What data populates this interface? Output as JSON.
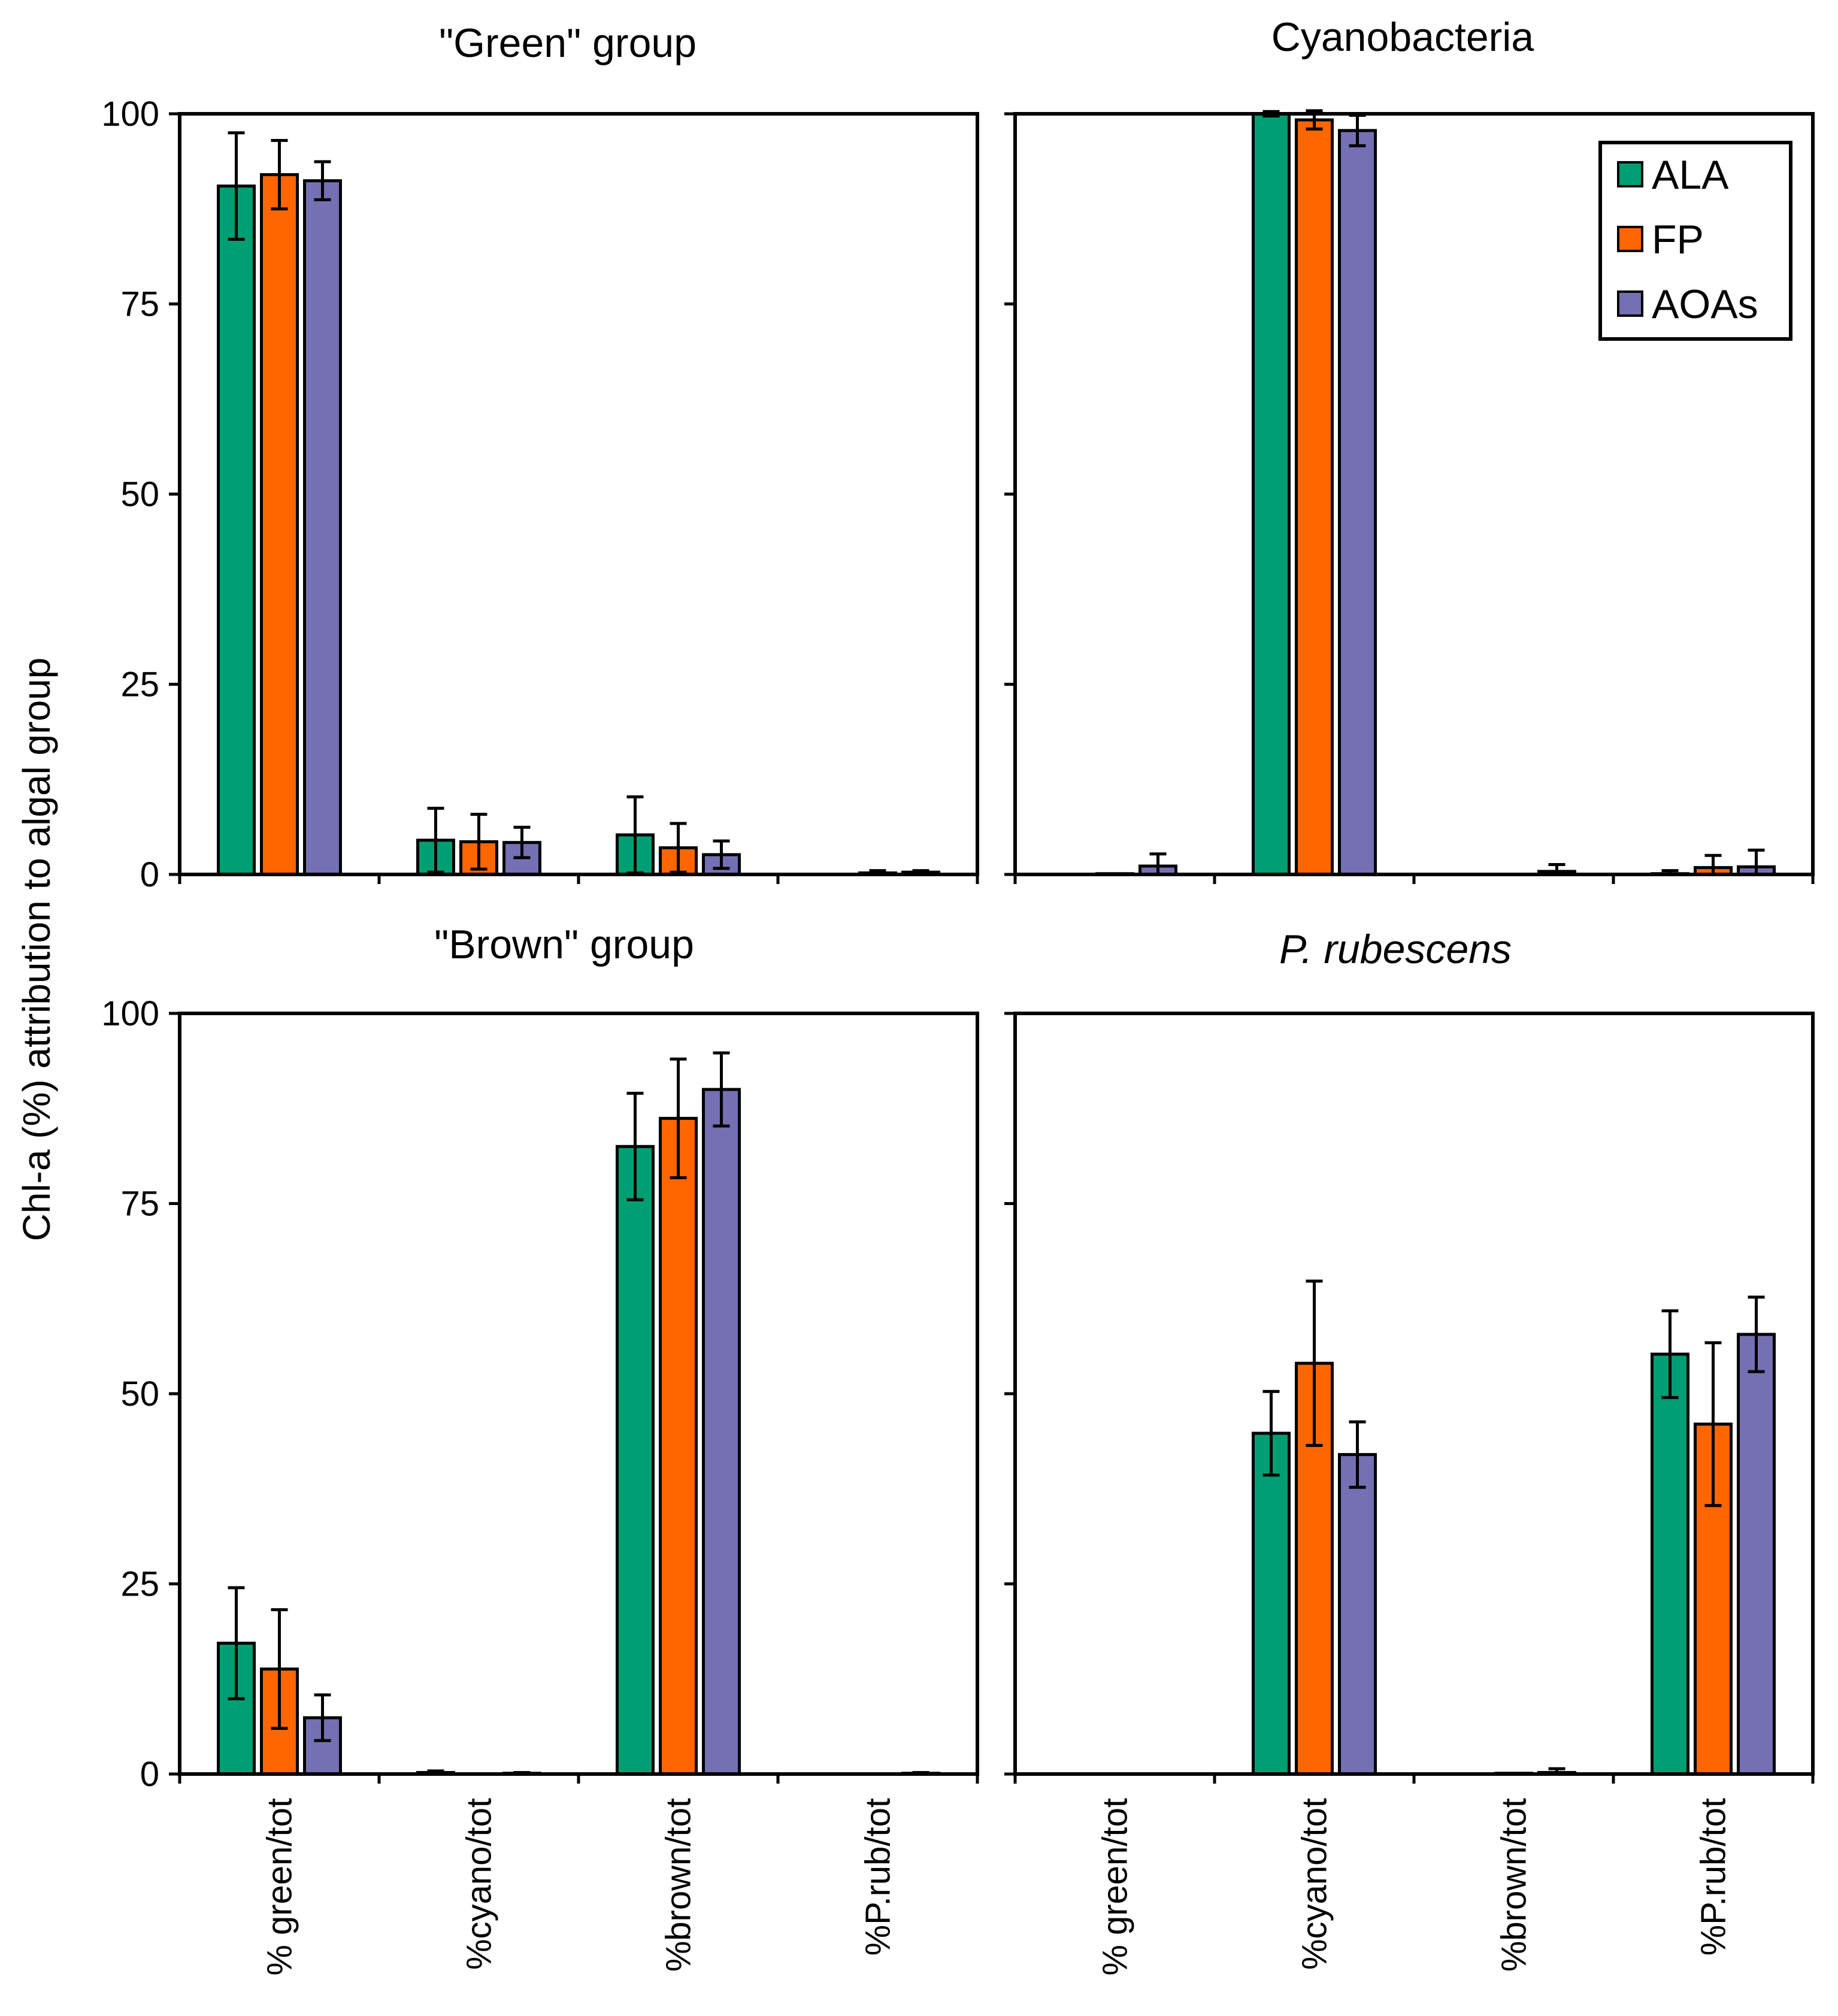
{
  "chart_data": {
    "type": "bar",
    "ylabel": "Chl-a (%) attribution to algal group",
    "categories": [
      "% green/tot",
      "%cyano/tot",
      "%brown/tot",
      "%P.rub/tot"
    ],
    "ylim": [
      0,
      100
    ],
    "yticks": [
      "0",
      "25",
      "50",
      "75",
      "100"
    ],
    "series_names": [
      "ALA",
      "FP",
      "AOAs"
    ],
    "colors": {
      "ALA": "#009E73",
      "FP": "#FF6600",
      "AOAs": "#7570B3"
    },
    "legend": {
      "placement": "top-right",
      "entries": [
        "ALA",
        "FP",
        "AOAs"
      ]
    },
    "panels": [
      {
        "title": "\"Green\" group",
        "italic": false,
        "series": [
          {
            "name": "ALA",
            "values": [
              90.5,
              4.5,
              5.2,
              0
            ],
            "errors": [
              7,
              4.2,
              5,
              0
            ]
          },
          {
            "name": "FP",
            "values": [
              92,
              4.3,
              3.5,
              0.2
            ],
            "errors": [
              4.5,
              3.6,
              3.2,
              0.3
            ]
          },
          {
            "name": "AOAs",
            "values": [
              91.2,
              4.2,
              2.6,
              0.3
            ],
            "errors": [
              2.5,
              2,
              1.8,
              0.2
            ]
          }
        ]
      },
      {
        "title": "Cyanobacteria",
        "italic": false,
        "series": [
          {
            "name": "ALA",
            "values": [
              0,
              100,
              0,
              0.1
            ],
            "errors": [
              0,
              0.3,
              0,
              0.4
            ]
          },
          {
            "name": "FP",
            "values": [
              0.1,
              99.2,
              0,
              0.9
            ],
            "errors": [
              0,
              1.2,
              0,
              1.6
            ]
          },
          {
            "name": "AOAs",
            "values": [
              1.1,
              97.8,
              0.4,
              1
            ],
            "errors": [
              1.6,
              2,
              0.9,
              2.2
            ]
          }
        ]
      },
      {
        "title": "\"Brown\" group",
        "italic": false,
        "series": [
          {
            "name": "ALA",
            "values": [
              17.2,
              0.2,
              82.5,
              0
            ],
            "errors": [
              7.3,
              0.2,
              7,
              0
            ]
          },
          {
            "name": "FP",
            "values": [
              13.8,
              0,
              86.2,
              0
            ],
            "errors": [
              7.8,
              0,
              7.8,
              0
            ]
          },
          {
            "name": "AOAs",
            "values": [
              7.4,
              0.1,
              90,
              0.1
            ],
            "errors": [
              3,
              0.1,
              4.8,
              0.1
            ]
          }
        ]
      },
      {
        "title": "P. rubescens",
        "italic": true,
        "series": [
          {
            "name": "ALA",
            "values": [
              0,
              44.8,
              0,
              55.2
            ],
            "errors": [
              0,
              5.5,
              0,
              5.7
            ]
          },
          {
            "name": "FP",
            "values": [
              0,
              54,
              0.1,
              46
            ],
            "errors": [
              0,
              10.8,
              0,
              10.7
            ]
          },
          {
            "name": "AOAs",
            "values": [
              0,
              42,
              0.2,
              57.8
            ],
            "errors": [
              0,
              4.3,
              0.5,
              4.9
            ]
          }
        ]
      }
    ]
  }
}
